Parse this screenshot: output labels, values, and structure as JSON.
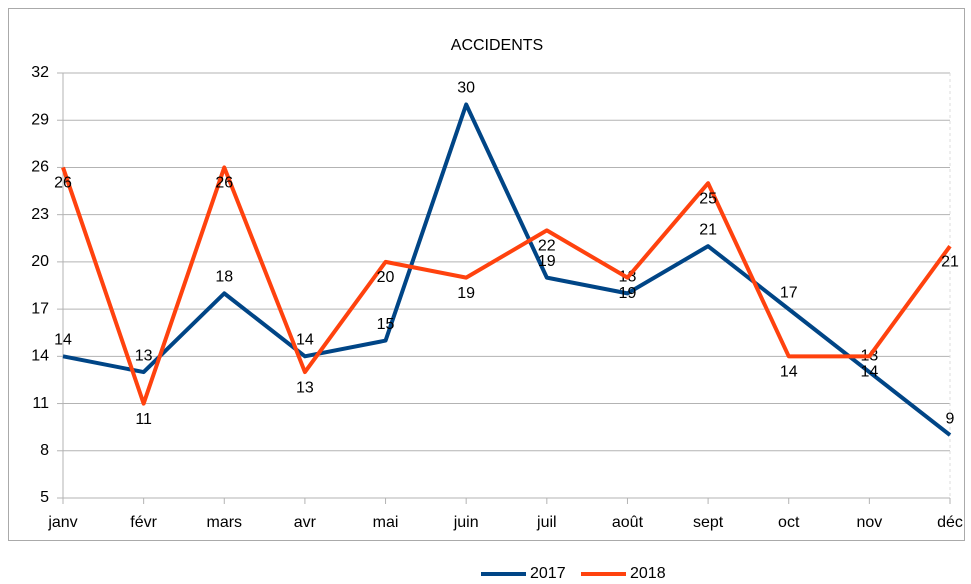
{
  "chart_data": {
    "type": "line",
    "title": "ACCIDENTS",
    "categories": [
      "janv",
      "févr",
      "mars",
      "avr",
      "mai",
      "juin",
      "juil",
      "août",
      "sept",
      "oct",
      "nov",
      "déc"
    ],
    "series": [
      {
        "name": "2017",
        "color": "#004586",
        "values": [
          14,
          13,
          18,
          14,
          15,
          30,
          19,
          18,
          21,
          17,
          13,
          9
        ]
      },
      {
        "name": "2018",
        "color": "#ff420e",
        "values": [
          26,
          11,
          26,
          13,
          20,
          19,
          22,
          19,
          25,
          14,
          14,
          21
        ]
      }
    ],
    "ylim": [
      5,
      32
    ],
    "yticks": [
      5,
      8,
      11,
      14,
      17,
      20,
      23,
      26,
      29,
      32
    ],
    "grid": true,
    "legend": "bottom"
  }
}
